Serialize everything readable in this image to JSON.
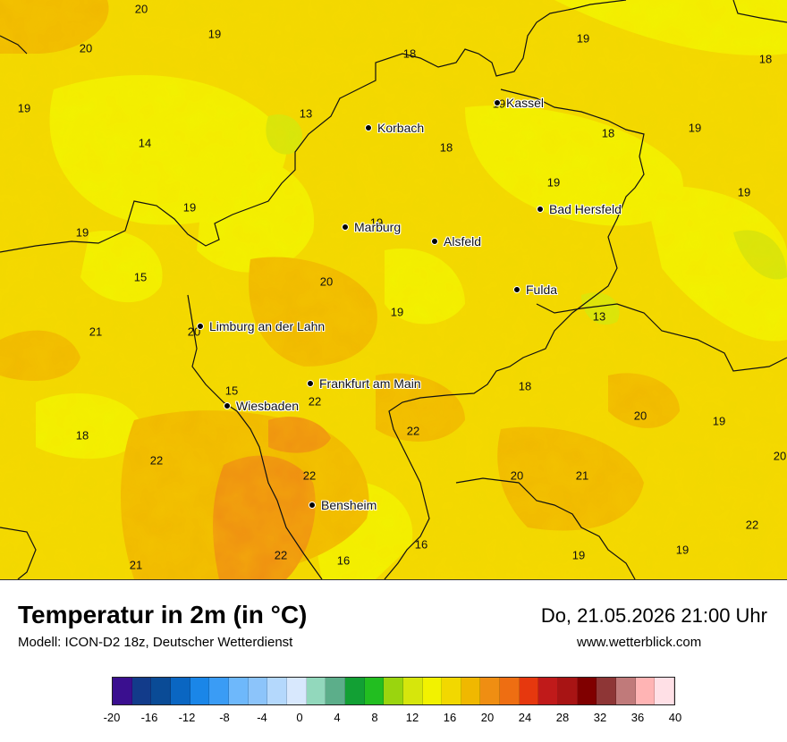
{
  "title": "Temperatur in 2m (in °C)",
  "model": "Modell: ICON-D2 18z, Deutscher Wetterdienst",
  "datetime": "Do, 21.05.2026 21:00 Uhr",
  "website": "www.wetterblick.com",
  "cities": [
    {
      "name": "Kassel"
    },
    {
      "name": "Korbach"
    },
    {
      "name": "Bad Hersfeld"
    },
    {
      "name": "Marburg"
    },
    {
      "name": "Alsfeld"
    },
    {
      "name": "Fulda"
    },
    {
      "name": "Limburg an der Lahn"
    },
    {
      "name": "Frankfurt am Main"
    },
    {
      "name": "Wiesbaden"
    },
    {
      "name": "Bensheim"
    }
  ],
  "values": [
    "20",
    "19",
    "20",
    "18",
    "19",
    "18",
    "19",
    "13",
    "18",
    "14",
    "19",
    "18",
    "19",
    "19",
    "19",
    "19",
    "19",
    "15",
    "20",
    "19",
    "19",
    "13",
    "21",
    "20",
    "15",
    "22",
    "18",
    "20",
    "19",
    "18",
    "22",
    "20",
    "22",
    "22",
    "22",
    "20",
    "21",
    "21",
    "16",
    "19",
    "16",
    "22",
    "19"
  ],
  "colorscale": {
    "ticks": [
      "-20",
      "-16",
      "-12",
      "-8",
      "-4",
      "0",
      "4",
      "8",
      "12",
      "16",
      "20",
      "24",
      "28",
      "32",
      "36",
      "40"
    ],
    "colors": [
      "#3a0f8f",
      "#123b8a",
      "#0a4b96",
      "#0a66c2",
      "#1a86e8",
      "#3a9cf5",
      "#6eb8fb",
      "#8cc4fa",
      "#b4d8fc",
      "#d8e8fd",
      "#92d8bc",
      "#5cae8a",
      "#12a034",
      "#22be20",
      "#9ad50e",
      "#d6e60c",
      "#f2f200",
      "#f2d800",
      "#f0b800",
      "#ef8e12",
      "#ee6e12",
      "#e6380e",
      "#c01a1a",
      "#a81414",
      "#800000",
      "#8e3636",
      "#c07a7a",
      "#ffb4b4",
      "#ffe0e6"
    ]
  }
}
